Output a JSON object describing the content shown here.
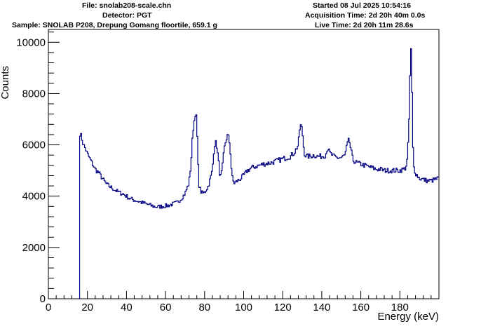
{
  "header": {
    "file": "File: snolab208-scale.chn",
    "detector": "Detector: PGT",
    "sample": "Sample: SNOLAB P208, Drepung Gomang floortile, 659.1 g",
    "started": "Started 08 Jul 2025 10:54:16",
    "acquisition": "Acquisition Time: 2d 20h 40m 0.0s",
    "live": "Live Time: 2d 20h 11m 28.6s"
  },
  "chart_data": {
    "type": "line",
    "style": "step histogram",
    "xlabel": "Energy (keV)",
    "ylabel": "Counts",
    "xlim": [
      0,
      200
    ],
    "ylim": [
      0,
      10500
    ],
    "xticks": [
      0,
      20,
      40,
      60,
      80,
      100,
      120,
      140,
      160,
      180
    ],
    "yticks": [
      0,
      2000,
      4000,
      6000,
      8000,
      10000
    ],
    "grid": false,
    "line_color": "#000080",
    "series": [
      {
        "x": [
          15,
          16,
          17,
          18,
          19,
          20,
          22,
          24,
          26,
          28,
          30,
          32,
          34,
          36,
          38,
          40,
          42,
          44,
          46,
          48,
          50,
          52,
          54,
          56,
          58,
          60,
          62,
          64,
          66,
          68,
          70,
          71,
          72,
          73,
          74,
          75,
          75.5,
          76,
          76.5,
          77,
          78,
          79,
          80,
          82,
          84,
          85,
          86,
          87,
          88,
          89,
          90,
          91,
          92,
          93,
          94,
          95,
          96,
          98,
          100,
          102,
          104,
          106,
          108,
          110,
          112,
          114,
          116,
          118,
          120,
          122,
          124,
          126,
          128,
          129,
          130,
          131,
          132,
          134,
          136,
          138,
          140,
          142,
          143,
          144,
          146,
          148,
          150,
          152,
          153,
          154,
          155,
          156,
          158,
          160,
          162,
          164,
          166,
          168,
          170,
          172,
          174,
          176,
          178,
          180,
          182,
          183,
          184,
          185,
          185.5,
          186,
          186.5,
          187,
          188,
          190,
          192,
          194,
          196,
          198,
          200
        ],
        "y": [
          0,
          6500,
          6300,
          6000,
          5850,
          5650,
          5350,
          5050,
          4900,
          4650,
          4450,
          4350,
          4250,
          4150,
          4100,
          4000,
          3900,
          3850,
          3800,
          3750,
          3700,
          3650,
          3600,
          3580,
          3600,
          3620,
          3650,
          3700,
          3750,
          3900,
          4100,
          4300,
          4500,
          5200,
          6500,
          7100,
          7350,
          6800,
          5800,
          4500,
          4200,
          4100,
          4150,
          4400,
          5000,
          6000,
          6100,
          5500,
          4700,
          5000,
          5800,
          6200,
          6400,
          6000,
          4800,
          4500,
          4550,
          4650,
          4800,
          5000,
          5100,
          5150,
          5200,
          5250,
          5280,
          5300,
          5350,
          5400,
          5450,
          5500,
          5550,
          5700,
          6000,
          6800,
          6600,
          5700,
          5550,
          5550,
          5600,
          5550,
          5550,
          5600,
          5900,
          5700,
          5550,
          5500,
          5500,
          5600,
          6000,
          6200,
          5800,
          5400,
          5300,
          5250,
          5200,
          5150,
          5100,
          5050,
          5050,
          5000,
          5000,
          5000,
          5000,
          5000,
          5050,
          5100,
          5500,
          7500,
          9850,
          9500,
          6500,
          5200,
          4900,
          4700,
          4650,
          4600,
          4600,
          4650,
          4700
        ]
      }
    ]
  }
}
